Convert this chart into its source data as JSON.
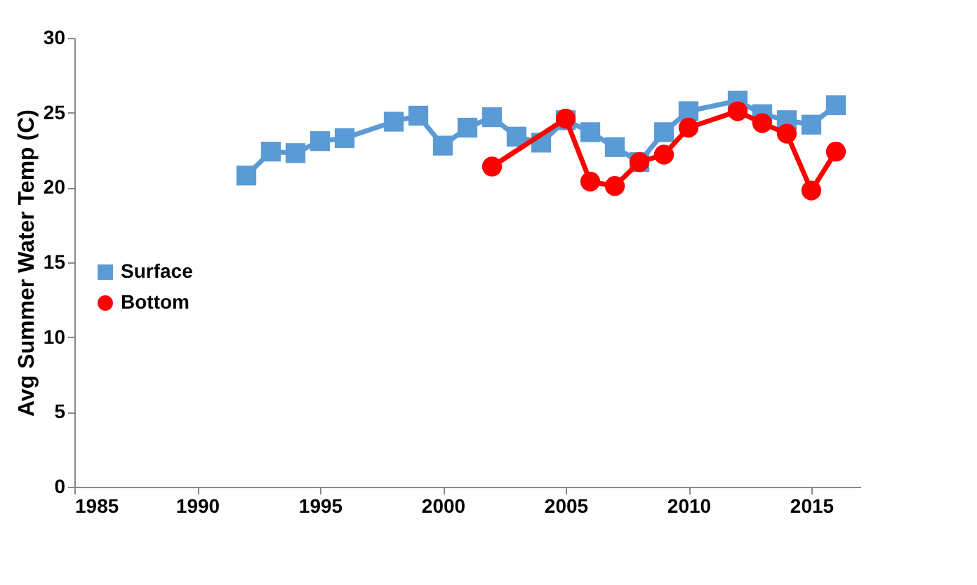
{
  "chart_data": {
    "type": "line",
    "ylabel": "Avg Summer Water Temp (C)",
    "xlim": [
      1985,
      2017
    ],
    "xticks": [
      1985,
      1990,
      1995,
      2000,
      2005,
      2010,
      2015
    ],
    "ylim": [
      0,
      30
    ],
    "yticks": [
      0,
      5,
      10,
      15,
      20,
      25,
      30
    ],
    "grid": false,
    "legend": "left",
    "series": [
      {
        "name": "Surface",
        "color": "#5b9bd5",
        "marker": "square",
        "x": [
          1992,
          1993,
          1994,
          1995,
          1996,
          1998,
          1999,
          2000,
          2001,
          2002,
          2003,
          2004,
          2005,
          2006,
          2007,
          2008,
          2009,
          2010,
          2012,
          2013,
          2014,
          2015,
          2016
        ],
        "values": [
          20.8,
          22.4,
          22.3,
          23.1,
          23.3,
          24.4,
          24.8,
          22.8,
          24.0,
          24.7,
          23.4,
          23.0,
          24.5,
          23.7,
          22.7,
          21.7,
          23.7,
          25.1,
          25.8,
          24.9,
          24.5,
          24.2,
          25.5
        ]
      },
      {
        "name": "Bottom",
        "color": "#ff0000",
        "marker": "circle",
        "x": [
          2002,
          2005,
          2006,
          2007,
          2008,
          2009,
          2010,
          2012,
          2013,
          2014,
          2015,
          2016
        ],
        "values": [
          21.4,
          24.6,
          20.4,
          20.1,
          21.7,
          22.2,
          24.0,
          25.1,
          24.3,
          23.6,
          19.8,
          22.4
        ]
      }
    ]
  }
}
